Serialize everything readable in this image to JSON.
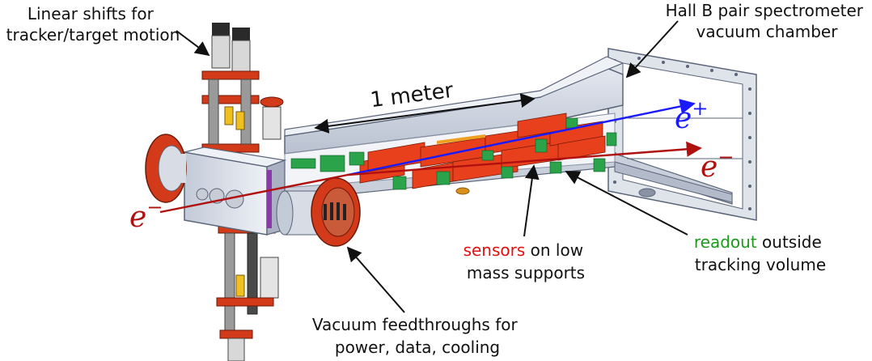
{
  "labels": {
    "linear_shifts_line1": "Linear shifts for",
    "linear_shifts_line2": "tracker/target motion",
    "chamber_line1": "Hall B pair spectrometer",
    "chamber_line2": "vacuum chamber",
    "meter": "1 meter",
    "sensors_word": "sensors",
    "sensors_rest": " on low",
    "sensors_line2": "mass supports",
    "readout_word": "readout",
    "readout_rest": " outside",
    "readout_line2": "tracking volume",
    "feedthrough_line1": "Vacuum feedthroughs for",
    "feedthrough_line2": "power, data, cooling"
  },
  "particles": {
    "positron_base": "e",
    "positron_sup": "+",
    "electron_out_base": "e",
    "electron_out_sup": "−",
    "electron_in_base": "e",
    "electron_in_sup": "−"
  },
  "colors": {
    "positron_beam": "#1a1aff",
    "electron_beam": "#b01010",
    "sensor_text": "#e01010",
    "readout_text": "#1a9a1a",
    "chamber_fill": "#d6dce8",
    "chamber_edge": "#5a6478",
    "flange_red": "#d23a1a",
    "sensor_red": "#e8401c",
    "readout_green": "#2aa34a"
  }
}
